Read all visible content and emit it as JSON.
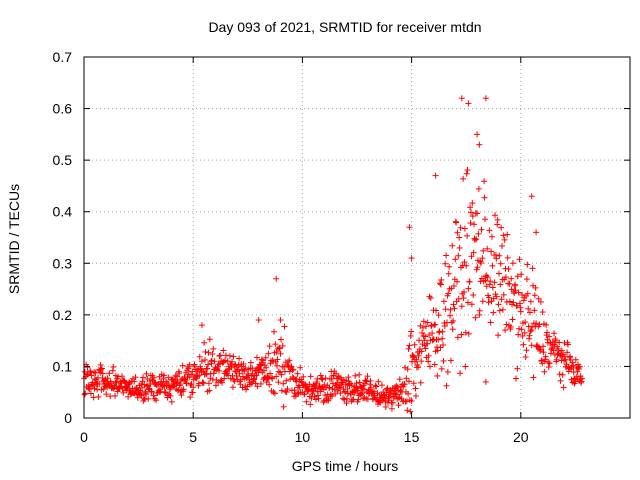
{
  "chart_data": {
    "type": "scatter",
    "title": "Day 093 of 2021, SRMTID for receiver mtdn",
    "xlabel": "GPS time / hours",
    "ylabel": "SRMTID / TECUs",
    "xlim": [
      0,
      25
    ],
    "ylim": [
      0,
      0.7
    ],
    "xticks": [
      0,
      5,
      10,
      15,
      20
    ],
    "yticks": [
      0,
      0.1,
      0.2,
      0.3,
      0.4,
      0.5,
      0.6,
      0.7
    ],
    "grid": true,
    "marker": "+",
    "series": [
      {
        "name": "SRMTID",
        "color": "#ff0000",
        "envelope": {
          "x": [
            0,
            0.5,
            1,
            1.5,
            2,
            2.5,
            3,
            3.5,
            4,
            4.5,
            5,
            5.5,
            6,
            6.5,
            7,
            7.5,
            8,
            8.5,
            9,
            9.5,
            10,
            10.5,
            11,
            11.5,
            12,
            12.5,
            13,
            13.5,
            14,
            14.5,
            15,
            15.5,
            16,
            16.5,
            17,
            17.5,
            18,
            18.5,
            19,
            19.5,
            20,
            20.5,
            21,
            21.5,
            22,
            22.5,
            22.8
          ],
          "median": [
            0.07,
            0.075,
            0.07,
            0.065,
            0.06,
            0.055,
            0.06,
            0.065,
            0.06,
            0.07,
            0.08,
            0.09,
            0.1,
            0.095,
            0.09,
            0.08,
            0.085,
            0.09,
            0.12,
            0.07,
            0.06,
            0.055,
            0.06,
            0.065,
            0.06,
            0.055,
            0.05,
            0.045,
            0.04,
            0.05,
            0.1,
            0.13,
            0.17,
            0.2,
            0.25,
            0.3,
            0.32,
            0.3,
            0.27,
            0.24,
            0.2,
            0.18,
            0.15,
            0.13,
            0.11,
            0.09,
            0.08
          ],
          "spread": [
            0.03,
            0.035,
            0.03,
            0.03,
            0.025,
            0.03,
            0.03,
            0.025,
            0.03,
            0.03,
            0.04,
            0.05,
            0.04,
            0.04,
            0.04,
            0.035,
            0.035,
            0.06,
            0.09,
            0.035,
            0.03,
            0.03,
            0.03,
            0.03,
            0.03,
            0.03,
            0.03,
            0.025,
            0.02,
            0.03,
            0.12,
            0.08,
            0.1,
            0.12,
            0.15,
            0.18,
            0.18,
            0.15,
            0.13,
            0.1,
            0.12,
            0.14,
            0.07,
            0.05,
            0.04,
            0.03,
            0.03
          ]
        },
        "peaks": [
          {
            "x": 5.4,
            "y": 0.18
          },
          {
            "x": 8.0,
            "y": 0.19
          },
          {
            "x": 8.8,
            "y": 0.27
          },
          {
            "x": 9.0,
            "y": 0.19
          },
          {
            "x": 14.9,
            "y": 0.37
          },
          {
            "x": 15.0,
            "y": 0.31
          },
          {
            "x": 16.1,
            "y": 0.47
          },
          {
            "x": 17.3,
            "y": 0.62
          },
          {
            "x": 17.6,
            "y": 0.61
          },
          {
            "x": 18.4,
            "y": 0.62
          },
          {
            "x": 18.0,
            "y": 0.55
          },
          {
            "x": 18.1,
            "y": 0.53
          },
          {
            "x": 20.5,
            "y": 0.43
          },
          {
            "x": 20.7,
            "y": 0.36
          },
          {
            "x": 18.4,
            "y": 0.07
          }
        ]
      }
    ]
  }
}
